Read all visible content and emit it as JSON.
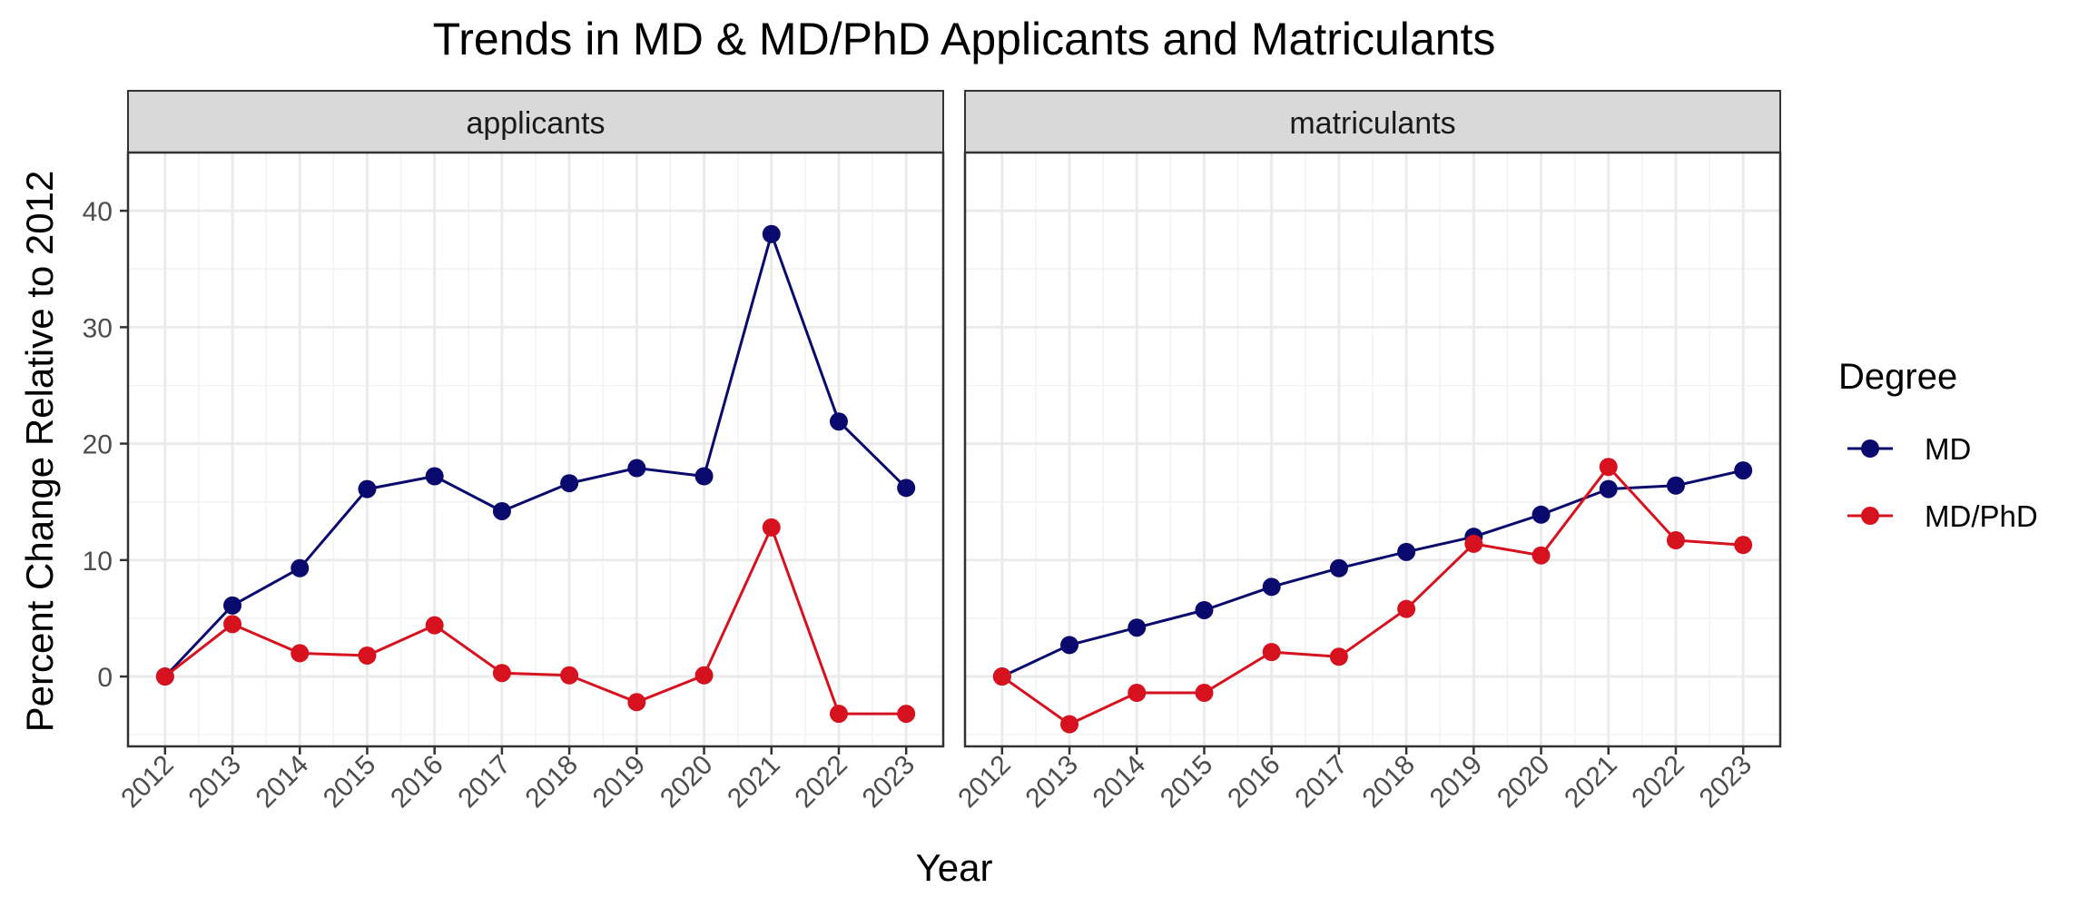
{
  "chart_data": {
    "type": "line",
    "title": "Trends in MD & MD/PhD Applicants and Matriculants",
    "xlabel": "Year",
    "ylabel": "Percent Change Relative to 2012",
    "x": [
      2012,
      2013,
      2014,
      2015,
      2016,
      2017,
      2018,
      2019,
      2020,
      2021,
      2022,
      2023
    ],
    "y_ticks": [
      0,
      10,
      20,
      30,
      40
    ],
    "ylim": [
      -6,
      45
    ],
    "grid": true,
    "legend": {
      "title": "Degree",
      "placement": "right",
      "entries": [
        "MD",
        "MD/PhD"
      ]
    },
    "colors": {
      "MD": "#0a0a6e",
      "MD/PhD": "#d7121f"
    },
    "panels": [
      {
        "label": "applicants",
        "series": [
          {
            "name": "MD",
            "values": [
              0,
              6.1,
              9.3,
              16.1,
              17.2,
              14.2,
              16.6,
              17.9,
              17.2,
              38.0,
              21.9,
              16.2
            ]
          },
          {
            "name": "MD/PhD",
            "values": [
              0,
              4.5,
              2.0,
              1.8,
              4.4,
              0.3,
              0.1,
              -2.2,
              0.1,
              12.8,
              -3.2,
              -3.2
            ]
          }
        ]
      },
      {
        "label": "matriculants",
        "series": [
          {
            "name": "MD",
            "values": [
              0,
              2.7,
              4.2,
              5.7,
              7.7,
              9.3,
              10.7,
              12.0,
              13.9,
              16.1,
              16.4,
              17.7
            ]
          },
          {
            "name": "MD/PhD",
            "values": [
              0,
              -4.1,
              -1.4,
              -1.4,
              2.1,
              1.7,
              5.8,
              11.4,
              10.4,
              18.0,
              11.7,
              11.3
            ]
          }
        ]
      }
    ]
  }
}
